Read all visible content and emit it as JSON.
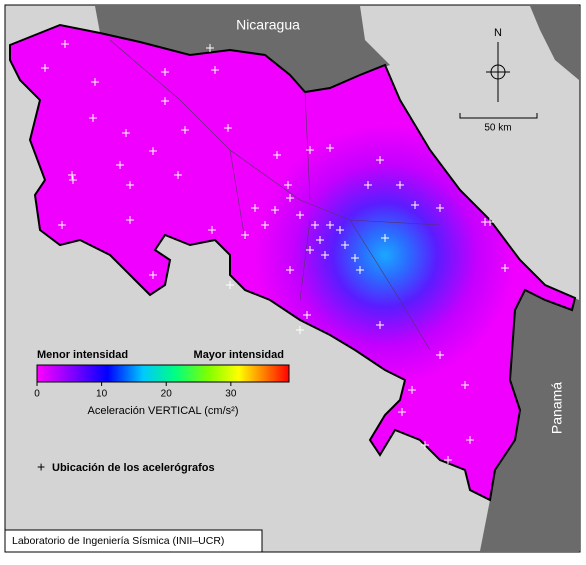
{
  "map": {
    "countries": {
      "north": "Nicaragua",
      "south": "Panamá"
    },
    "north_arrow": "N",
    "scale_bar": "50 km",
    "colorbar": {
      "low_label": "Menor intensidad",
      "high_label": "Mayor intensidad",
      "title": "Aceleración VERTICAL (cm/s²)",
      "lim": [
        0,
        39
      ],
      "ticks": [
        0,
        10,
        20,
        30
      ]
    },
    "legend": "Ubicación de los acelerógrafos",
    "credit": "Laboratorio de Ingeniería Sísmica (INII–UCR)"
  }
}
